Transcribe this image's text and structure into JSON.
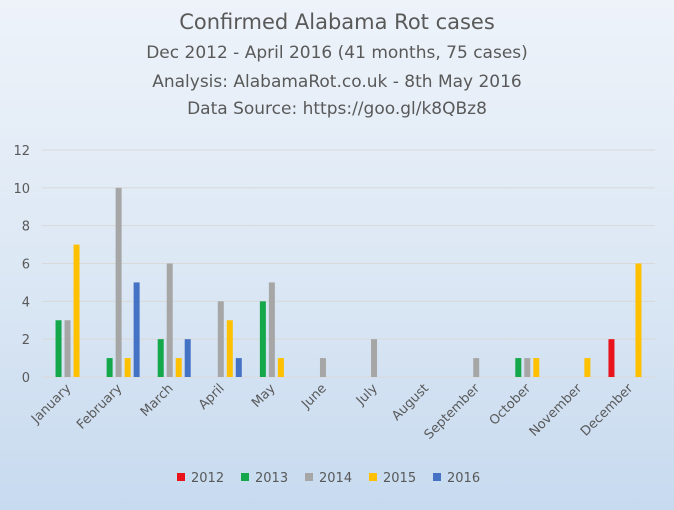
{
  "chart_data": {
    "type": "bar",
    "title": "Confirmed Alabama Rot cases",
    "subtitle_lines": [
      "Dec 2012 - April 2016 (41 months, 75 cases)",
      "Analysis: AlabamaRot.co.uk - 8th May 2016",
      "Data Source: https://goo.gl/k8QBz8"
    ],
    "categories": [
      "January",
      "February",
      "March",
      "April",
      "May",
      "June",
      "July",
      "August",
      "September",
      "October",
      "November",
      "December"
    ],
    "ylim": [
      0,
      12
    ],
    "yticks": [
      0,
      2,
      4,
      6,
      8,
      10,
      12
    ],
    "grid": true,
    "legend_position": "bottom",
    "series": [
      {
        "name": "2012",
        "color": "#e8131b",
        "values": [
          0,
          0,
          0,
          0,
          0,
          0,
          0,
          0,
          0,
          0,
          0,
          2
        ]
      },
      {
        "name": "2013",
        "color": "#14a84b",
        "values": [
          3,
          1,
          2,
          0,
          4,
          0,
          0,
          0,
          0,
          1,
          0,
          0
        ]
      },
      {
        "name": "2014",
        "color": "#a6a6a6",
        "values": [
          3,
          10,
          6,
          4,
          5,
          1,
          2,
          0,
          1,
          1,
          0,
          0
        ]
      },
      {
        "name": "2015",
        "color": "#ffc000",
        "values": [
          7,
          1,
          1,
          3,
          1,
          0,
          0,
          0,
          0,
          1,
          1,
          6
        ]
      },
      {
        "name": "2016",
        "color": "#4472c4",
        "values": [
          0,
          5,
          2,
          1,
          0,
          0,
          0,
          0,
          0,
          0,
          0,
          0
        ]
      }
    ]
  }
}
